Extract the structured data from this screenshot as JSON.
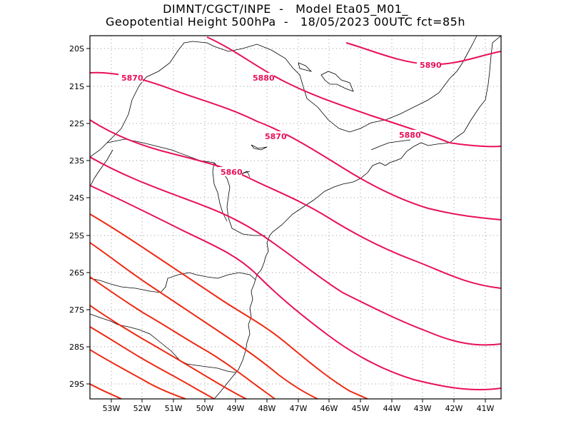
{
  "title": {
    "line1": "DIMNT/CGCT/INPE  -   Model Eta05_M01_",
    "line2": "Geopotential Height 500hPa  -   18/05/2023 00UTC fct=85h"
  },
  "axes": {
    "lat_labels": [
      "20S",
      "21S",
      "22S",
      "23S",
      "24S",
      "25S",
      "26S",
      "27S",
      "28S",
      "29S"
    ],
    "lon_labels": [
      "53W",
      "52W",
      "51W",
      "50W",
      "49W",
      "48W",
      "47W",
      "46W",
      "45W",
      "44W",
      "43W",
      "42W",
      "41W"
    ]
  },
  "contour_labels": [
    "5870",
    "5880",
    "5870",
    "5860",
    "5880",
    "5890"
  ],
  "colors": {
    "contour_pink": "#e8105a",
    "contour_red": "#ee2a14",
    "coast": "#000000",
    "grid": "#9a9a9a"
  }
}
